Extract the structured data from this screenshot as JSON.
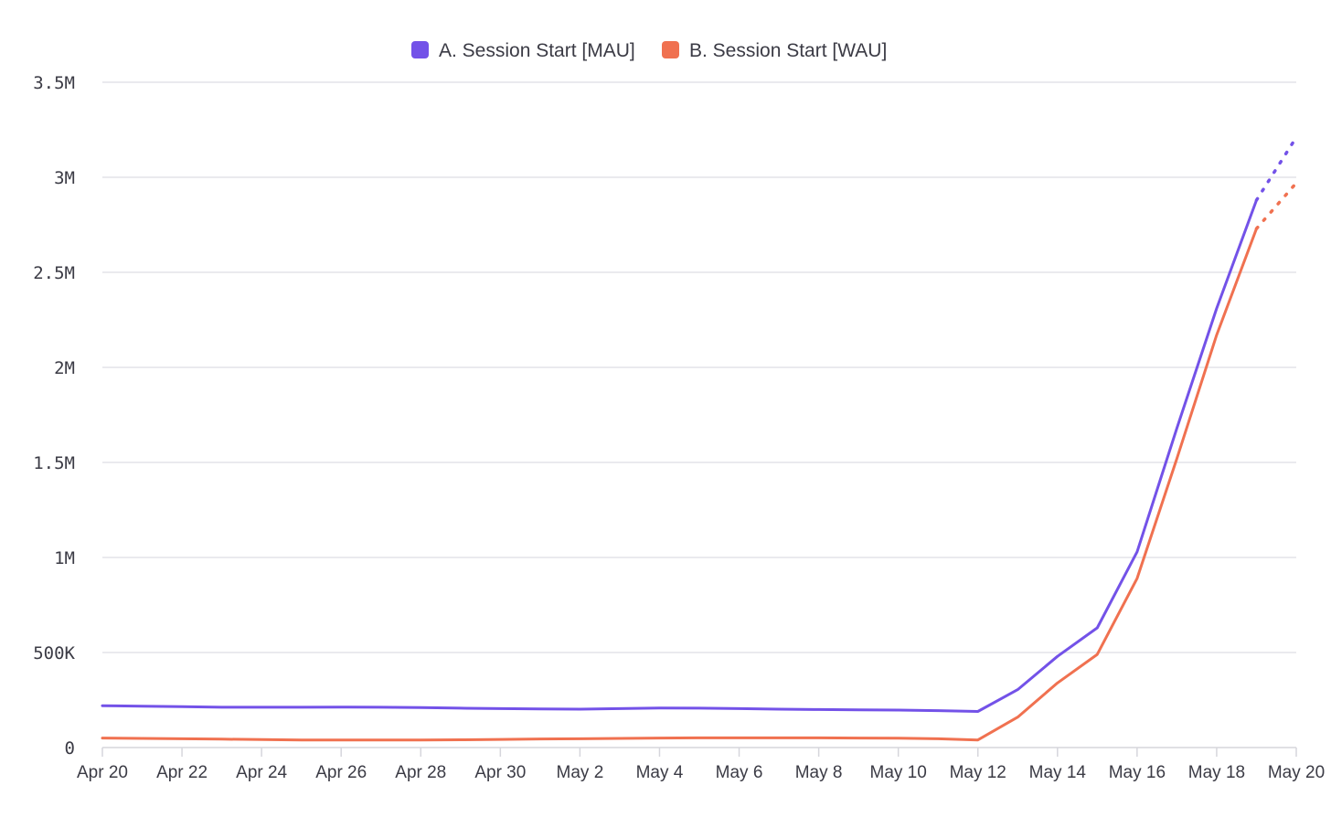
{
  "chart_data": {
    "type": "line",
    "title": "",
    "xlabel": "",
    "ylabel": "",
    "ylim": [
      0,
      3500000
    ],
    "yticks": [
      {
        "value": 0,
        "label": "0"
      },
      {
        "value": 500000,
        "label": "500K"
      },
      {
        "value": 1000000,
        "label": "1M"
      },
      {
        "value": 1500000,
        "label": "1.5M"
      },
      {
        "value": 2000000,
        "label": "2M"
      },
      {
        "value": 2500000,
        "label": "2.5M"
      },
      {
        "value": 3000000,
        "label": "3M"
      },
      {
        "value": 3500000,
        "label": "3.5M"
      }
    ],
    "xtick_labels": [
      "Apr 20",
      "Apr 22",
      "Apr 24",
      "Apr 26",
      "Apr 28",
      "Apr 30",
      "May 2",
      "May 4",
      "May 6",
      "May 8",
      "May 10",
      "May 12",
      "May 14",
      "May 16",
      "May 18",
      "May 20"
    ],
    "x": [
      "Apr 20",
      "Apr 21",
      "Apr 22",
      "Apr 23",
      "Apr 24",
      "Apr 25",
      "Apr 26",
      "Apr 27",
      "Apr 28",
      "Apr 29",
      "Apr 30",
      "May 1",
      "May 2",
      "May 3",
      "May 4",
      "May 5",
      "May 6",
      "May 7",
      "May 8",
      "May 9",
      "May 10",
      "May 11",
      "May 12",
      "May 13",
      "May 14",
      "May 15",
      "May 16",
      "May 17",
      "May 18",
      "May 19",
      "May 20"
    ],
    "grid": true,
    "legend_position": "top-center",
    "projection_from": "May 19",
    "series": [
      {
        "name": "A. Session Start [MAU]",
        "color": "#7352e8",
        "values": [
          220000,
          218000,
          215000,
          212000,
          212000,
          212000,
          213000,
          212000,
          210000,
          207000,
          205000,
          203000,
          202000,
          205000,
          208000,
          207000,
          205000,
          202000,
          200000,
          198000,
          197000,
          194000,
          190000,
          305000,
          480000,
          630000,
          1030000,
          1680000,
          2310000,
          2880000,
          3210000
        ]
      },
      {
        "name": "B. Session Start [WAU]",
        "color": "#f07150",
        "values": [
          50000,
          48000,
          46000,
          44000,
          42000,
          40000,
          40000,
          40000,
          40000,
          41000,
          43000,
          45000,
          46000,
          48000,
          50000,
          51000,
          51000,
          51000,
          51000,
          50000,
          49000,
          46000,
          40000,
          160000,
          340000,
          490000,
          890000,
          1520000,
          2170000,
          2730000,
          2970000
        ]
      }
    ]
  }
}
